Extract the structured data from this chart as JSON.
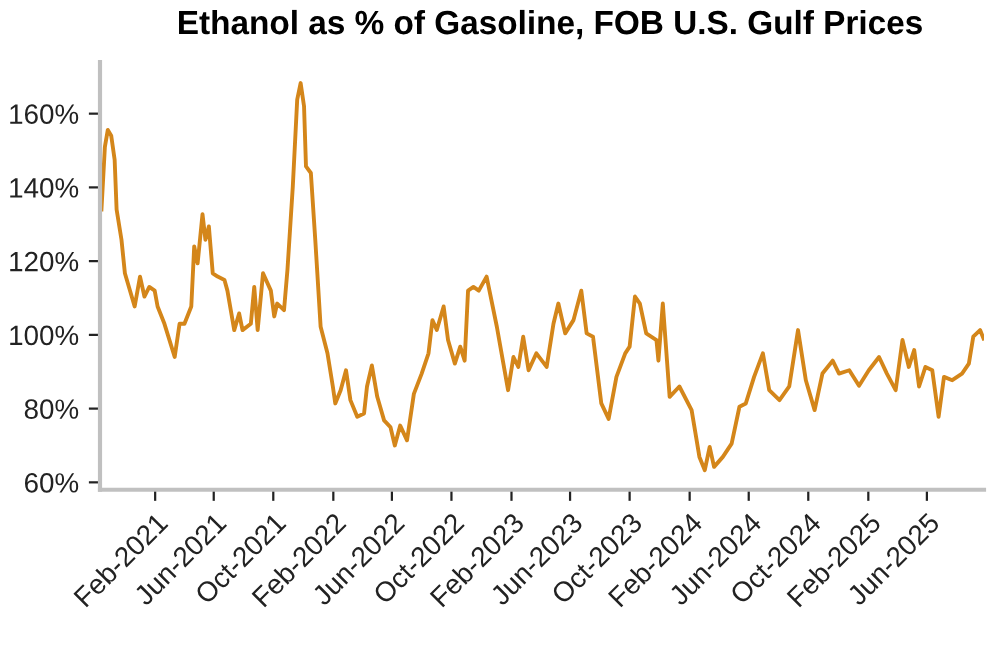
{
  "chart_data": {
    "type": "line",
    "title": "Ethanol as % of Gasoline, FOB U.S. Gulf Prices",
    "series": [
      {
        "color": "#d4861a",
        "x": [
          "2020-10-14",
          "2020-10-21",
          "2020-10-27",
          "2020-11-03",
          "2020-11-10",
          "2020-11-14",
          "2020-11-24",
          "2020-12-01",
          "2020-12-07",
          "2020-12-21",
          "2021-01-01",
          "2021-01-10",
          "2021-01-20",
          "2021-01-31",
          "2021-02-06",
          "2021-02-20",
          "2021-03-13",
          "2021-03-23",
          "2021-04-02",
          "2021-04-16",
          "2021-04-22",
          "2021-04-29",
          "2021-05-09",
          "2021-05-15",
          "2021-05-22",
          "2021-05-30",
          "2021-06-09",
          "2021-06-23",
          "2021-06-29",
          "2021-07-13",
          "2021-07-23",
          "2021-07-30",
          "2021-08-16",
          "2021-08-23",
          "2021-08-30",
          "2021-09-10",
          "2021-09-26",
          "2021-10-03",
          "2021-10-09",
          "2021-10-23",
          "2021-10-30",
          "2021-11-10",
          "2021-11-19",
          "2021-11-26",
          "2021-12-03",
          "2021-12-07",
          "2021-12-17",
          "2021-12-26",
          "2022-01-06",
          "2022-01-20",
          "2022-01-31",
          "2022-02-05",
          "2022-02-16",
          "2022-02-27",
          "2022-03-08",
          "2022-03-22",
          "2022-04-05",
          "2022-04-11",
          "2022-04-21",
          "2022-05-02",
          "2022-05-16",
          "2022-05-29",
          "2022-06-07",
          "2022-06-18",
          "2022-07-02",
          "2022-07-16",
          "2022-08-01",
          "2022-08-15",
          "2022-08-23",
          "2022-09-01",
          "2022-09-15",
          "2022-09-24",
          "2022-10-08",
          "2022-10-19",
          "2022-10-28",
          "2022-11-04",
          "2022-11-15",
          "2022-11-26",
          "2022-12-12",
          "2023-01-02",
          "2023-01-25",
          "2023-02-05",
          "2023-02-15",
          "2023-02-25",
          "2023-03-08",
          "2023-03-24",
          "2023-04-14",
          "2023-04-28",
          "2023-05-08",
          "2023-05-22",
          "2023-06-08",
          "2023-06-24",
          "2023-07-05",
          "2023-07-18",
          "2023-08-04",
          "2023-08-19",
          "2023-09-04",
          "2023-09-22",
          "2023-10-01",
          "2023-10-12",
          "2023-10-22",
          "2023-11-04",
          "2023-11-25",
          "2023-11-29",
          "2023-12-08",
          "2023-12-22",
          "2024-01-11",
          "2024-02-05",
          "2024-02-21",
          "2024-03-03",
          "2024-03-13",
          "2024-03-22",
          "2024-04-09",
          "2024-04-27",
          "2024-05-13",
          "2024-05-26",
          "2024-06-12",
          "2024-06-30",
          "2024-07-13",
          "2024-08-03",
          "2024-08-23",
          "2024-09-10",
          "2024-09-26",
          "2024-10-14",
          "2024-10-30",
          "2024-11-20",
          "2024-12-03",
          "2024-12-24",
          "2025-01-13",
          "2025-02-02",
          "2025-02-23",
          "2025-03-11",
          "2025-03-29",
          "2025-04-12",
          "2025-04-25",
          "2025-05-06",
          "2025-05-16",
          "2025-05-29",
          "2025-06-12",
          "2025-06-25",
          "2025-07-06",
          "2025-07-23",
          "2025-08-12",
          "2025-08-26",
          "2025-09-04",
          "2025-09-18",
          "2025-09-25"
        ],
        "values": [
          134,
          151,
          155.6,
          154,
          147.5,
          134,
          125.8,
          116.7,
          114,
          107.7,
          115.8,
          110.4,
          113,
          112,
          107.7,
          103,
          94,
          103,
          103,
          107.7,
          124,
          119.4,
          132.7,
          125.8,
          129.4,
          116.7,
          115.8,
          114.9,
          112,
          101.3,
          105.8,
          101.3,
          103,
          113,
          101.3,
          116.7,
          112,
          105,
          108.5,
          106.7,
          117.6,
          140.3,
          163.8,
          168.3,
          162,
          145.7,
          143.9,
          125.8,
          102.2,
          95,
          86,
          81.4,
          85,
          90.4,
          82.3,
          77.8,
          78.7,
          86,
          91.7,
          83.2,
          76.8,
          75,
          70,
          75.4,
          71.4,
          84,
          89.5,
          95,
          104,
          101.3,
          107.7,
          98.6,
          92.2,
          96.8,
          93,
          112,
          113,
          112,
          115.8,
          102.2,
          85,
          94,
          91.3,
          99.5,
          90.4,
          95,
          91.3,
          103,
          108.5,
          100.4,
          104,
          112,
          100.4,
          99.5,
          81.4,
          77.2,
          88.6,
          95,
          96.8,
          110.4,
          108.5,
          100.4,
          98.6,
          93,
          108.5,
          83.2,
          86,
          79.6,
          66.9,
          63.3,
          69.6,
          64.2,
          66.9,
          70.5,
          80.5,
          81.4,
          88.6,
          95,
          85,
          82.3,
          86,
          101.3,
          87.7,
          79.6,
          89.5,
          93,
          89.5,
          90.4,
          86.2,
          90.4,
          94,
          89.5,
          85,
          98.6,
          91.3,
          95.9,
          86,
          91.3,
          90.4,
          77.8,
          88.6,
          87.7,
          89.5,
          92.2,
          99.5,
          101.3,
          99
        ]
      }
    ],
    "xlim": [
      "2020-10-11",
      "2025-09-26"
    ],
    "xticks": [
      {
        "value": "2021-02-01",
        "label": "Feb-2021"
      },
      {
        "value": "2021-06-01",
        "label": "Jun-2021"
      },
      {
        "value": "2021-10-01",
        "label": "Oct-2021"
      },
      {
        "value": "2022-02-01",
        "label": "Feb-2022"
      },
      {
        "value": "2022-06-01",
        "label": "Jun-2022"
      },
      {
        "value": "2022-10-01",
        "label": "Oct-2022"
      },
      {
        "value": "2023-02-01",
        "label": "Feb-2023"
      },
      {
        "value": "2023-06-01",
        "label": "Jun-2023"
      },
      {
        "value": "2023-10-01",
        "label": "Oct-2023"
      },
      {
        "value": "2024-02-01",
        "label": "Feb-2024"
      },
      {
        "value": "2024-06-01",
        "label": "Jun-2024"
      },
      {
        "value": "2024-10-01",
        "label": "Oct-2024"
      },
      {
        "value": "2025-02-01",
        "label": "Feb-2025"
      },
      {
        "value": "2025-06-01",
        "label": "Jun-2025"
      }
    ],
    "ylim": [
      58,
      174
    ],
    "yticks": [
      {
        "value": 60,
        "label": "60%"
      },
      {
        "value": 80,
        "label": "80%"
      },
      {
        "value": 100,
        "label": "100%"
      },
      {
        "value": 120,
        "label": "120%"
      },
      {
        "value": 140,
        "label": "140%"
      },
      {
        "value": 160,
        "label": "160%"
      }
    ],
    "grid": false,
    "legend": false,
    "marker": "none",
    "line_style": "solid"
  }
}
